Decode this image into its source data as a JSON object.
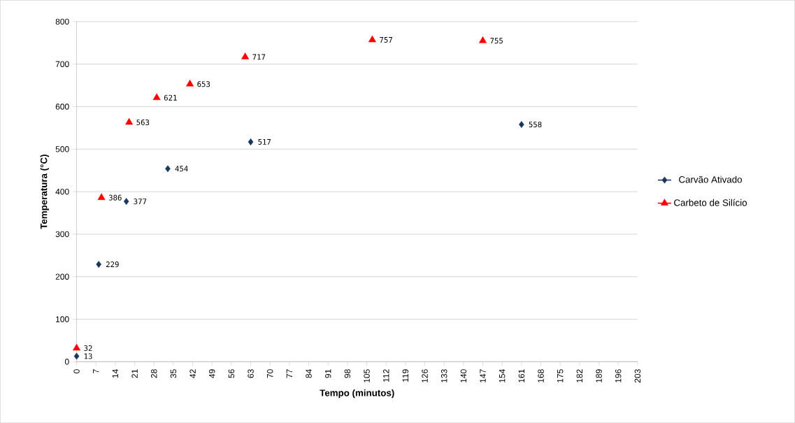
{
  "chart_data": {
    "type": "scatter",
    "xlabel": "Tempo (minutos)",
    "ylabel": "Temperatura (°C)",
    "xlim": [
      0,
      203
    ],
    "xticks": [
      0,
      7,
      14,
      21,
      28,
      35,
      42,
      49,
      56,
      63,
      70,
      77,
      84,
      91,
      98,
      105,
      112,
      119,
      126,
      133,
      140,
      147,
      154,
      161,
      168,
      175,
      182,
      189,
      196,
      203
    ],
    "ylim": [
      0,
      800
    ],
    "yticks": [
      0,
      100,
      200,
      300,
      400,
      500,
      600,
      700,
      800
    ],
    "grid": "y",
    "legend": "right",
    "data_labels": true,
    "series": [
      {
        "name": "Carvão Ativado",
        "color": "#17375e",
        "marker": "diamond",
        "x": [
          0,
          8,
          18,
          33,
          63,
          161
        ],
        "values": [
          13,
          229,
          377,
          454,
          517,
          558
        ]
      },
      {
        "name": "Carbeto de Silício",
        "color": "#ff0000",
        "marker": "triangle",
        "x": [
          0,
          9,
          19,
          29,
          41,
          61,
          107,
          147
        ],
        "values": [
          32,
          386,
          563,
          621,
          653,
          717,
          757,
          755
        ]
      }
    ]
  }
}
